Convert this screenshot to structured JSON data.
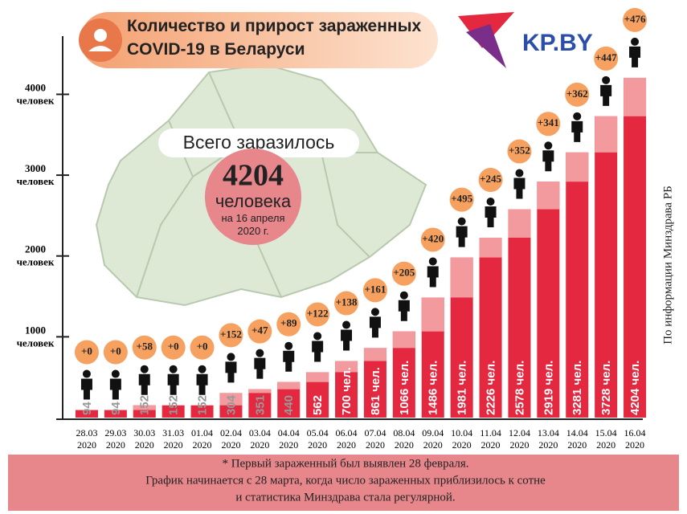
{
  "chart_data": {
    "type": "bar",
    "title": "Количество и прирост зараженных COVID-19 в Беларуси",
    "logo": "KP.BY",
    "total_caption": "Всего заразилось",
    "total_value": "4204",
    "total_unit": "человека",
    "total_date": "на 16 апреля 2020 г.",
    "source": "По информации Минздрава РБ",
    "footnote": [
      "* Первый зараженный был выявлен 28 февраля.",
      "График начинается с 28 марта, когда число зараженных приблизилось к сотне",
      "и статистика Минздрава стала регулярной."
    ],
    "categories": [
      "28.03",
      "29.03",
      "30.03",
      "31.03",
      "01.04",
      "02.04",
      "03.04",
      "04.04",
      "05.04",
      "06.04",
      "07.04",
      "08.04",
      "09.04",
      "10.04",
      "11.04",
      "12.04",
      "13.04",
      "14.04",
      "15.04",
      "16.04"
    ],
    "category_year": "2020",
    "values": [
      94,
      94,
      152,
      152,
      152,
      304,
      351,
      440,
      562,
      700,
      861,
      1066,
      1486,
      1981,
      2226,
      2578,
      2919,
      3281,
      3728,
      4204
    ],
    "value_labels": [
      "94",
      "94",
      "152",
      "152",
      "152",
      "304",
      "351",
      "440",
      "562",
      "700 чел.",
      "861 чел.",
      "1066 чел.",
      "1486 чел.",
      "1981 чел.",
      "2226 чел.",
      "2578 чел.",
      "2919 чел.",
      "3281 чел.",
      "3728 чел.",
      "4204 чел."
    ],
    "increments": [
      0,
      0,
      58,
      0,
      0,
      152,
      47,
      89,
      122,
      138,
      161,
      205,
      420,
      495,
      245,
      352,
      341,
      362,
      447,
      476
    ],
    "increment_labels": [
      "+0",
      "+0",
      "+58",
      "+0",
      "+0",
      "+152",
      "+47",
      "+89",
      "+122",
      "+138",
      "+161",
      "+205",
      "+420",
      "+495",
      "+245",
      "+352",
      "+341",
      "+362",
      "+447",
      "+476"
    ],
    "color": "#e3283f",
    "increment_color": "#f29a9e",
    "bubble_color": "#f6a15f",
    "ylim": [
      0,
      4720
    ],
    "yticks": [
      1000,
      2000,
      3000,
      4000
    ],
    "ytick_unit": "человек"
  }
}
